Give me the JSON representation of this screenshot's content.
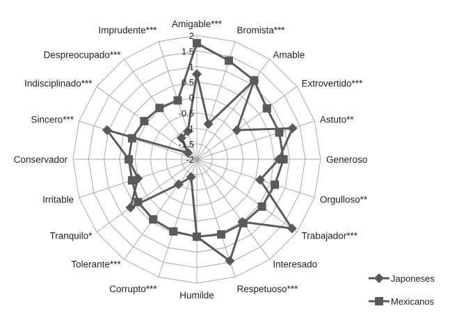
{
  "chart_data": {
    "type": "radar",
    "categories": [
      "Amigable***",
      "Bromista***",
      "Amable",
      "Extrovertido***",
      "Astuto**",
      "Generoso",
      "Orgulloso**",
      "Trabajador***",
      "Interesado",
      "Respetuoso***",
      "Humilde",
      "Corrupto***",
      "Tolerante***",
      "Tranquilo*",
      "Irritable",
      "Conservador",
      "Sincero***",
      "Indisciplinado***",
      "Despreocupado***",
      "Imprudente***"
    ],
    "rlim": [
      -2,
      2
    ],
    "ticks": [
      "2",
      "1.5",
      "1",
      "0.5",
      "0",
      "-0.5",
      "-1",
      "-1.5",
      "-2"
    ],
    "grid": true,
    "legend_position": "bottom-right",
    "series": [
      {
        "name": "Japoneses",
        "marker": "diamond",
        "color": "#5a5a5a",
        "values": [
          0.75,
          -0.8,
          1.15,
          -0.4,
          1.25,
          0.65,
          0.15,
          1.8,
          0.5,
          1.45,
          0.5,
          -1.4,
          -1.0,
          0.65,
          0.0,
          0.2,
          1.05,
          -1.65,
          -1.15,
          -1.05
        ]
      },
      {
        "name": "Mexicanos",
        "marker": "square",
        "color": "#5a5a5a",
        "values": [
          1.75,
          1.35,
          1.15,
          0.8,
          0.8,
          0.8,
          0.65,
          0.6,
          0.55,
          0.55,
          0.5,
          0.45,
          0.4,
          0.35,
          0.2,
          0.2,
          0.2,
          0.1,
          0.05,
          0.0
        ]
      }
    ]
  }
}
